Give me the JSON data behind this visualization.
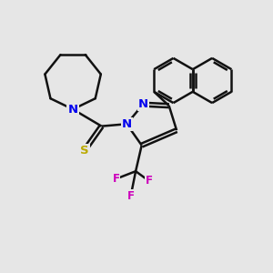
{
  "background_color": "#e6e6e6",
  "line_color": "#111111",
  "N_color": "#0000ee",
  "S_color": "#bbaa00",
  "F_color": "#cc00bb",
  "line_width": 1.8,
  "figsize": [
    3.0,
    3.0
  ],
  "dpi": 100,
  "xlim": [
    0,
    10
  ],
  "ylim": [
    0,
    10
  ]
}
